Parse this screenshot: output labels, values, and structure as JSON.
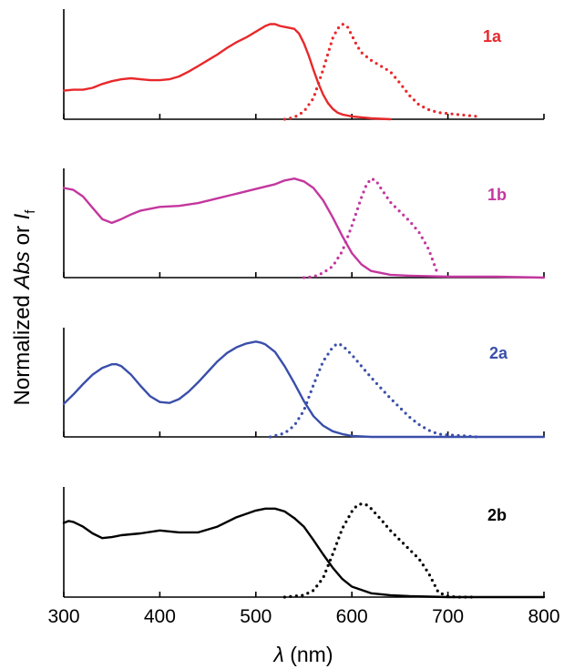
{
  "chart_data": [
    {
      "type": "line",
      "label": "1a",
      "color": "#e8282b",
      "series": [
        {
          "style": "solid",
          "x": [
            300,
            310,
            320,
            330,
            340,
            350,
            360,
            370,
            380,
            390,
            400,
            410,
            420,
            430,
            440,
            450,
            460,
            470,
            480,
            490,
            500,
            510,
            515,
            520,
            525,
            530,
            540,
            545,
            550,
            555,
            560,
            565,
            570,
            575,
            580,
            585,
            590,
            600,
            610,
            620,
            640
          ],
          "y": [
            0.3,
            0.31,
            0.31,
            0.33,
            0.37,
            0.4,
            0.42,
            0.43,
            0.42,
            0.41,
            0.41,
            0.42,
            0.45,
            0.5,
            0.56,
            0.62,
            0.68,
            0.75,
            0.81,
            0.86,
            0.92,
            0.98,
            1.0,
            1.0,
            0.98,
            0.97,
            0.95,
            0.9,
            0.8,
            0.67,
            0.52,
            0.38,
            0.26,
            0.17,
            0.11,
            0.07,
            0.05,
            0.03,
            0.02,
            0.01,
            0.0
          ]
        },
        {
          "style": "dotted",
          "x": [
            530,
            540,
            550,
            560,
            570,
            580,
            585,
            590,
            595,
            600,
            605,
            610,
            620,
            630,
            640,
            650,
            660,
            670,
            680,
            690,
            700,
            710,
            720,
            730
          ],
          "y": [
            0.0,
            0.02,
            0.08,
            0.22,
            0.52,
            0.85,
            0.95,
            1.0,
            0.98,
            0.88,
            0.78,
            0.7,
            0.62,
            0.56,
            0.5,
            0.38,
            0.25,
            0.15,
            0.1,
            0.07,
            0.06,
            0.05,
            0.04,
            0.03
          ]
        }
      ],
      "xlim": [
        300,
        800
      ],
      "ylim": [
        0,
        1.1
      ]
    },
    {
      "type": "line",
      "label": "1b",
      "color": "#c3379e",
      "series": [
        {
          "style": "solid",
          "x": [
            300,
            310,
            320,
            330,
            340,
            350,
            360,
            370,
            380,
            400,
            420,
            440,
            460,
            480,
            500,
            520,
            530,
            540,
            550,
            560,
            570,
            580,
            590,
            600,
            610,
            620,
            640,
            660,
            700,
            750,
            800
          ],
          "y": [
            0.95,
            0.93,
            0.86,
            0.74,
            0.62,
            0.58,
            0.62,
            0.67,
            0.71,
            0.75,
            0.76,
            0.79,
            0.84,
            0.89,
            0.94,
            0.99,
            1.03,
            1.05,
            1.02,
            0.95,
            0.82,
            0.64,
            0.44,
            0.26,
            0.14,
            0.07,
            0.03,
            0.02,
            0.01,
            0.01,
            0.0
          ]
        },
        {
          "style": "dotted",
          "x": [
            550,
            560,
            570,
            580,
            590,
            600,
            610,
            615,
            620,
            625,
            630,
            640,
            650,
            660,
            670,
            680,
            690
          ],
          "y": [
            0.0,
            0.01,
            0.05,
            0.12,
            0.28,
            0.55,
            0.85,
            0.98,
            1.05,
            1.03,
            0.95,
            0.8,
            0.7,
            0.6,
            0.48,
            0.3,
            0.02
          ]
        }
      ],
      "xlim": [
        300,
        800
      ],
      "ylim": [
        0,
        1.1
      ]
    },
    {
      "type": "line",
      "label": "2a",
      "color": "#3a4faa",
      "series": [
        {
          "style": "solid",
          "x": [
            300,
            310,
            320,
            330,
            340,
            350,
            355,
            360,
            370,
            380,
            390,
            400,
            410,
            420,
            430,
            440,
            450,
            460,
            470,
            480,
            490,
            500,
            505,
            510,
            520,
            530,
            540,
            550,
            560,
            570,
            580,
            590,
            600,
            620,
            640,
            700,
            800
          ],
          "y": [
            0.35,
            0.45,
            0.56,
            0.66,
            0.73,
            0.77,
            0.77,
            0.75,
            0.66,
            0.54,
            0.43,
            0.37,
            0.36,
            0.4,
            0.48,
            0.58,
            0.69,
            0.8,
            0.89,
            0.95,
            0.99,
            1.01,
            1.0,
            0.98,
            0.9,
            0.75,
            0.57,
            0.38,
            0.22,
            0.12,
            0.06,
            0.03,
            0.01,
            0.0,
            0.0,
            0.0,
            0.0
          ]
        },
        {
          "style": "dotted",
          "x": [
            515,
            530,
            540,
            550,
            560,
            570,
            580,
            585,
            590,
            600,
            610,
            620,
            630,
            640,
            650,
            660,
            670,
            680,
            690,
            700,
            720,
            730
          ],
          "y": [
            0.0,
            0.04,
            0.12,
            0.28,
            0.55,
            0.8,
            0.95,
            0.99,
            0.97,
            0.87,
            0.75,
            0.63,
            0.52,
            0.41,
            0.31,
            0.21,
            0.13,
            0.07,
            0.03,
            0.02,
            0.01,
            0.0
          ]
        }
      ],
      "xlim": [
        300,
        800
      ],
      "ylim": [
        0,
        1.1
      ]
    },
    {
      "type": "line",
      "label": "2b",
      "color": "#000000",
      "series": [
        {
          "style": "solid",
          "x": [
            300,
            305,
            310,
            320,
            330,
            340,
            350,
            360,
            380,
            400,
            420,
            440,
            460,
            480,
            500,
            510,
            520,
            530,
            540,
            550,
            560,
            570,
            580,
            590,
            600,
            620,
            640,
            660,
            700,
            800
          ],
          "y": [
            0.78,
            0.8,
            0.79,
            0.74,
            0.67,
            0.62,
            0.63,
            0.65,
            0.67,
            0.7,
            0.68,
            0.68,
            0.74,
            0.84,
            0.91,
            0.93,
            0.93,
            0.9,
            0.83,
            0.74,
            0.6,
            0.45,
            0.31,
            0.19,
            0.11,
            0.04,
            0.02,
            0.01,
            0.0,
            0.0
          ]
        },
        {
          "style": "dotted",
          "x": [
            530,
            550,
            560,
            570,
            580,
            590,
            600,
            605,
            610,
            615,
            620,
            630,
            640,
            650,
            660,
            670,
            680,
            690,
            700,
            710,
            720,
            730
          ],
          "y": [
            0.0,
            0.02,
            0.07,
            0.2,
            0.45,
            0.72,
            0.9,
            0.96,
            0.98,
            0.97,
            0.93,
            0.82,
            0.7,
            0.6,
            0.5,
            0.4,
            0.25,
            0.05,
            0.01,
            0.0,
            0.0,
            0.0
          ]
        }
      ],
      "xlim": [
        300,
        800
      ],
      "ylim": [
        0,
        1.1
      ]
    }
  ],
  "axes": {
    "ylabel_prefix": "Normalized ",
    "ylabel_abs": "Abs",
    "ylabel_or": " or ",
    "ylabel_i": "I",
    "ylabel_sub": "f",
    "xlabel_symbol": "λ",
    "xlabel_unit": " (nm)",
    "x_ticks": [
      "300",
      "400",
      "500",
      "600",
      "700",
      "800"
    ],
    "x_tick_values": [
      300,
      400,
      500,
      600,
      700,
      800
    ]
  }
}
